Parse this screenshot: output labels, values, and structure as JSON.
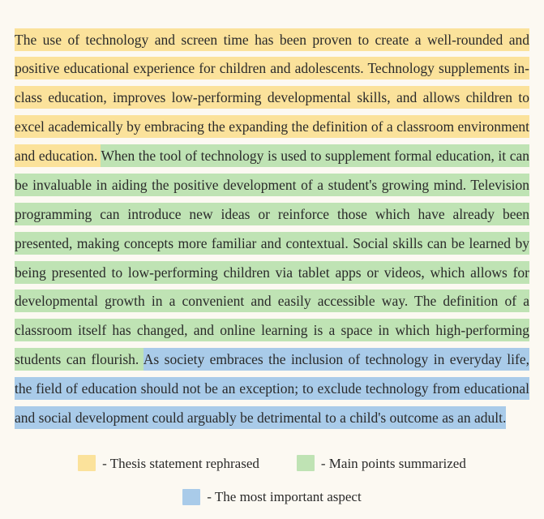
{
  "colors": {
    "thesis": "#fbe29b",
    "main_points": "#bfe3b4",
    "important": "#a9cbe9",
    "background": "#fcf9f2",
    "text": "#2a2a2a"
  },
  "paragraph": {
    "segments": [
      {
        "key": "thesis",
        "text": "The use of technology and screen time has been proven to create a well-rounded and positive educational experience for children and adolescents. Technology supplements in-class education, improves low-performing developmental skills, and allows children to excel academically by embracing the expanding the definition of a classroom environment and education. "
      },
      {
        "key": "main_points",
        "text": "When the tool of technology is used to supplement formal education, it can be invaluable in aiding the positive development of a student's growing mind. Television programming can introduce new ideas or reinforce those which have already been presented, making concepts more familiar and contextual. Social skills can be learned by being presented to low-performing children via tablet apps or videos, which allows for developmental growth in a convenient and easily accessible way. The definition of a classroom itself has changed, and online learning is a space in which high-performing students can flourish. "
      },
      {
        "key": "important",
        "text": "As society embraces the inclusion of technology in everyday life, the field of education should not be an exception; to exclude technology from educational and social development could arguably be detrimental to a child's outcome as an adult."
      }
    ]
  },
  "legend": {
    "items": [
      {
        "key": "thesis",
        "label": " - Thesis statement rephrased"
      },
      {
        "key": "main_points",
        "label": " - Main points summarized"
      },
      {
        "key": "important",
        "label": " - The most important aspect"
      }
    ]
  }
}
